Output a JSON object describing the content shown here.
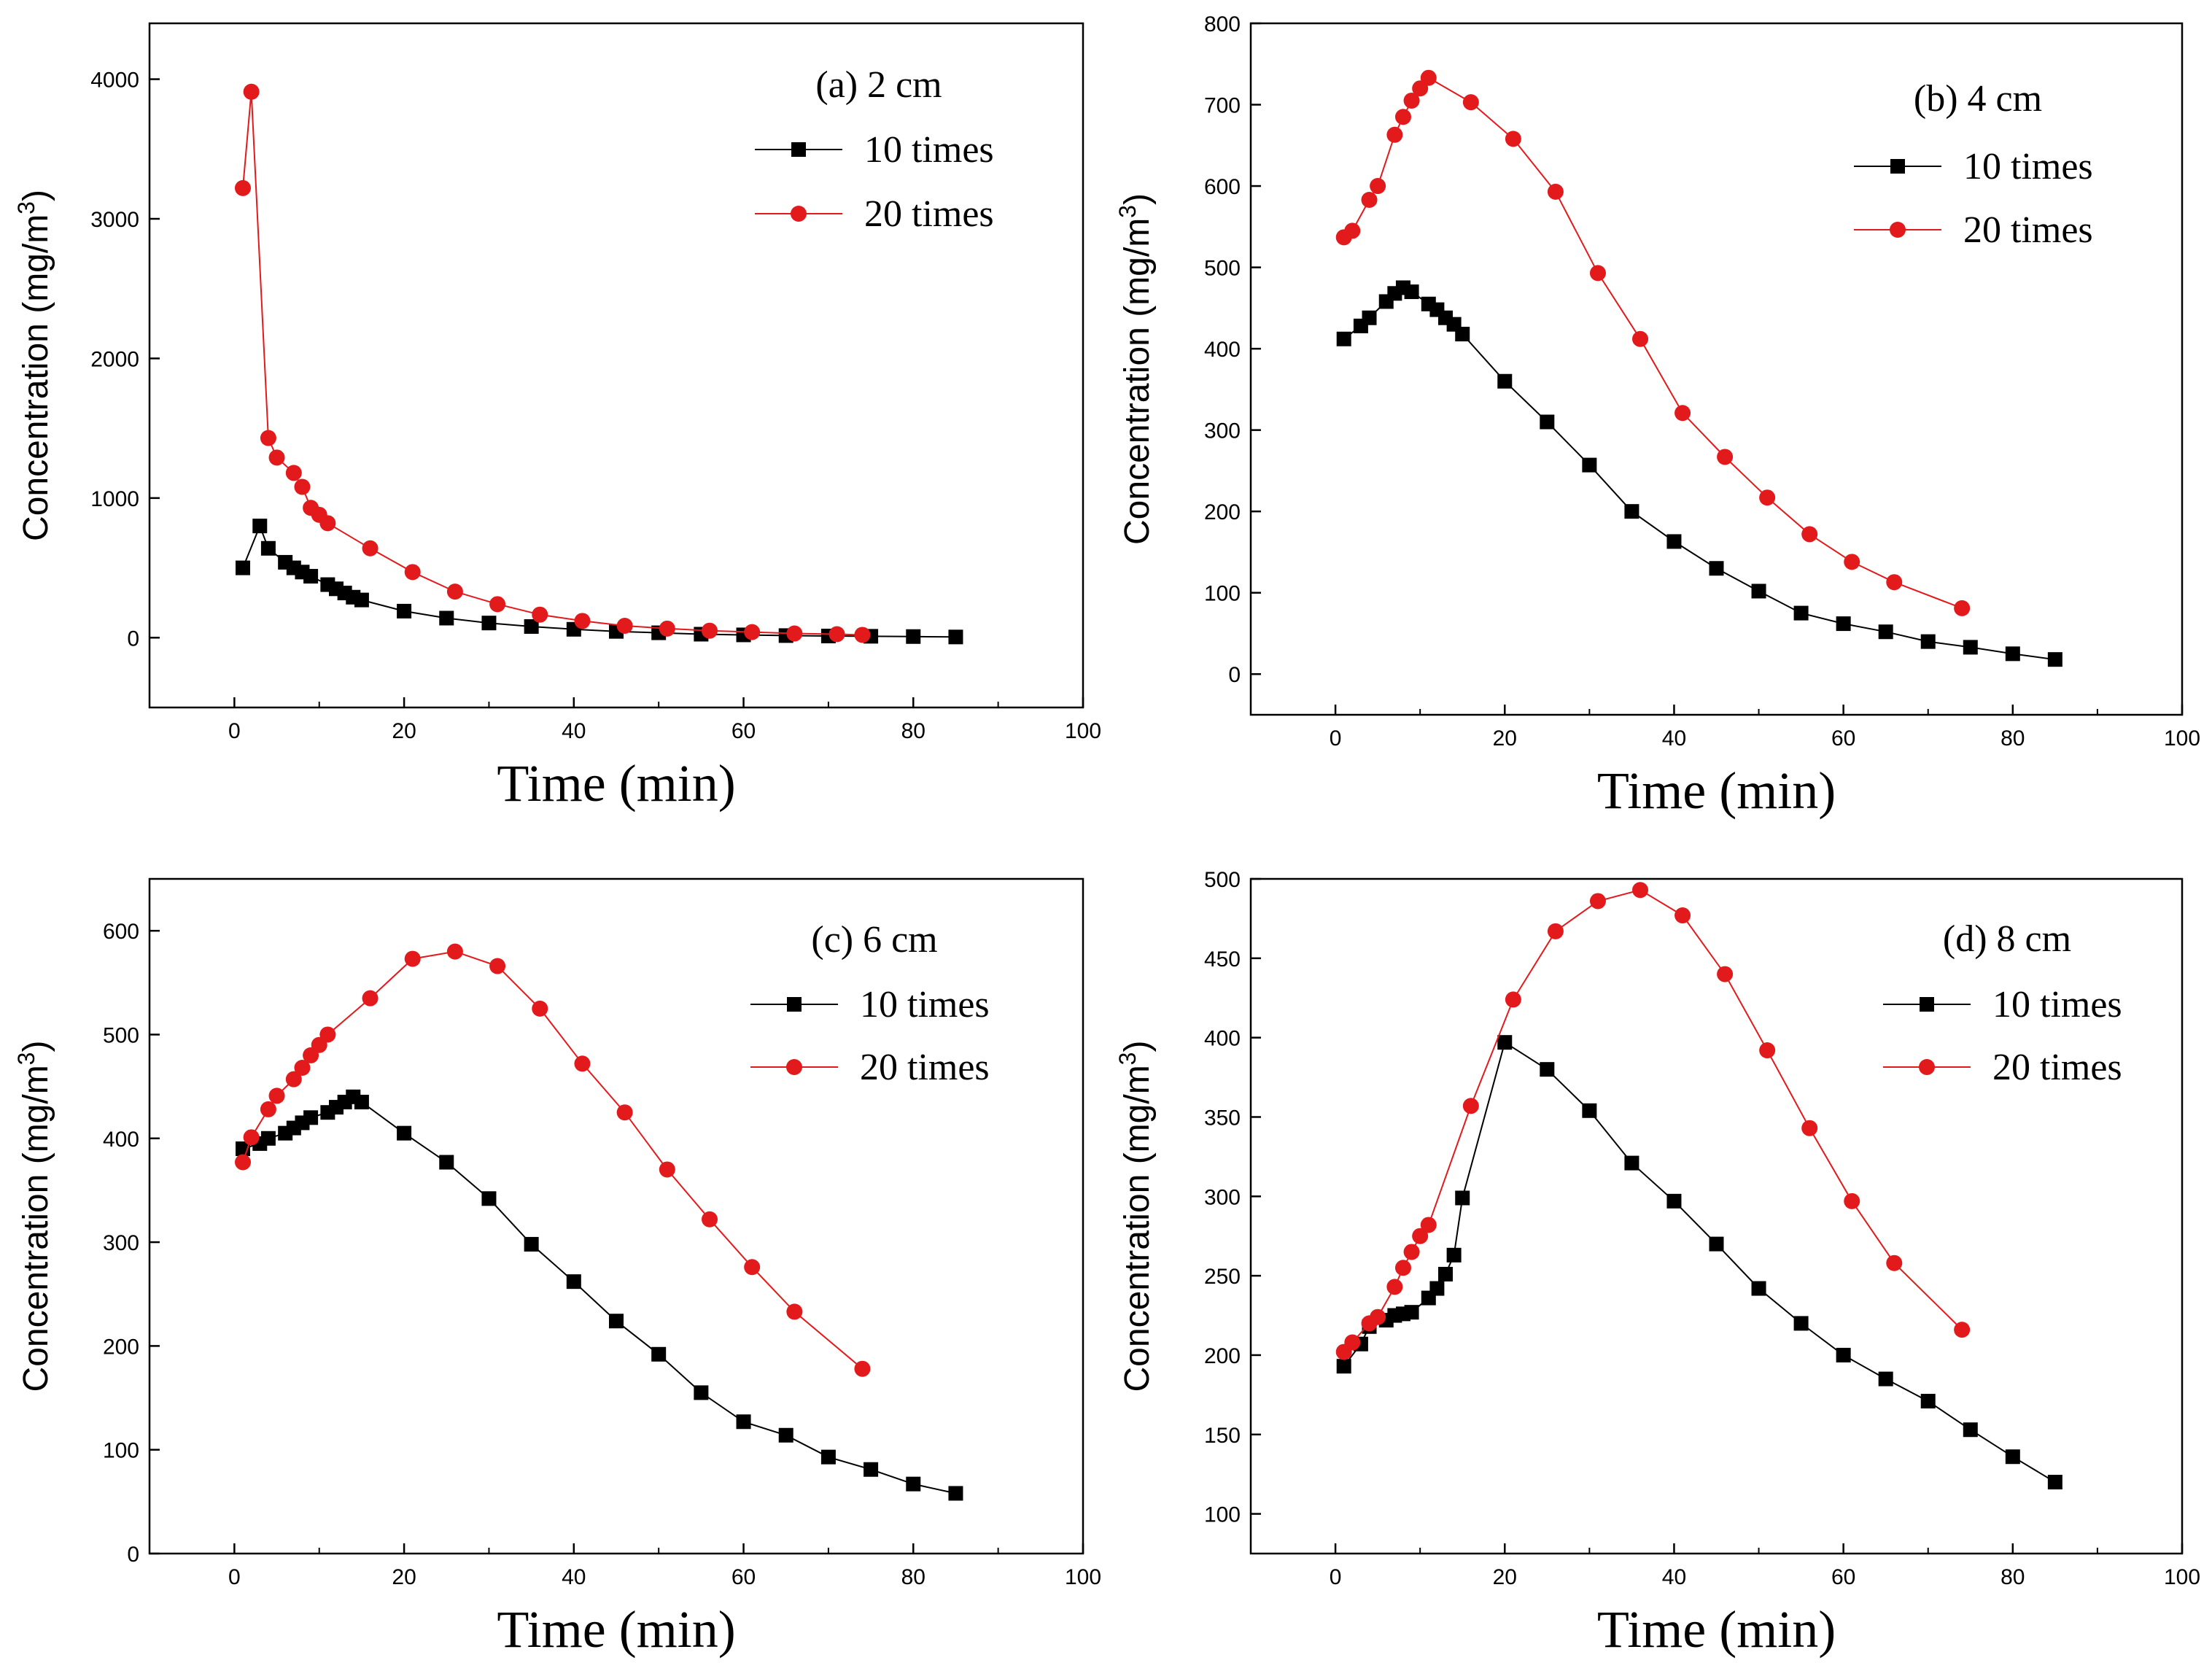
{
  "colors": {
    "series_10": "#000000",
    "series_20": "#e31a1c",
    "axis": "#000000"
  },
  "chart_data": [
    {
      "type": "line",
      "title": "(a) 2 cm",
      "xlabel": "Time (min)",
      "ylabel": "Concentration (mg/m3)",
      "ylabel_main": "Concentration (mg/m",
      "ylabel_sup": "3",
      "ylabel_tail": ")",
      "xlim": [
        -10,
        100
      ],
      "ylim": [
        -500,
        4400
      ],
      "xticks": [
        0,
        20,
        40,
        60,
        80,
        100
      ],
      "yticks": [
        0,
        1000,
        2000,
        3000,
        4000
      ],
      "legend_position": "top-right",
      "series": [
        {
          "name": "10 times",
          "marker": "square",
          "x": [
            1,
            3,
            4,
            6,
            7,
            8,
            9,
            11,
            12,
            13,
            14,
            15,
            20,
            25,
            30,
            35,
            40,
            45,
            50,
            55,
            60,
            65,
            70,
            75,
            80,
            85
          ],
          "y": [
            500,
            800,
            640,
            540,
            500,
            470,
            440,
            380,
            350,
            320,
            290,
            270,
            190,
            140,
            105,
            80,
            60,
            45,
            35,
            25,
            20,
            15,
            12,
            10,
            8,
            5
          ]
        },
        {
          "name": "20 times",
          "marker": "circle",
          "x": [
            1,
            2,
            4,
            5,
            7,
            8,
            9,
            10,
            11,
            16,
            21,
            26,
            31,
            36,
            41,
            46,
            51,
            56,
            61,
            66,
            71,
            74
          ],
          "y": [
            3220,
            3910,
            1430,
            1290,
            1180,
            1080,
            930,
            880,
            820,
            640,
            470,
            330,
            240,
            165,
            120,
            85,
            65,
            50,
            40,
            30,
            25,
            20
          ]
        }
      ]
    },
    {
      "type": "line",
      "title": "(b) 4 cm",
      "xlabel": "Time (min)",
      "ylabel": "Concentration (mg/m3)",
      "ylabel_main": "Concentration (mg/m",
      "ylabel_sup": "3",
      "ylabel_tail": ")",
      "xlim": [
        -10,
        100
      ],
      "ylim": [
        -50,
        800
      ],
      "xticks": [
        0,
        20,
        40,
        60,
        80,
        100
      ],
      "yticks": [
        0,
        100,
        200,
        300,
        400,
        500,
        600,
        700,
        800
      ],
      "legend_position": "top-right",
      "series": [
        {
          "name": "10 times",
          "marker": "square",
          "x": [
            1,
            3,
            4,
            6,
            7,
            8,
            9,
            11,
            12,
            13,
            14,
            15,
            20,
            25,
            30,
            35,
            40,
            45,
            50,
            55,
            60,
            65,
            70,
            75,
            80,
            85
          ],
          "y": [
            412,
            428,
            438,
            458,
            468,
            475,
            470,
            455,
            448,
            438,
            430,
            418,
            360,
            310,
            257,
            200,
            163,
            130,
            102,
            75,
            62,
            52,
            40,
            33,
            25,
            18
          ]
        },
        {
          "name": "20 times",
          "marker": "circle",
          "x": [
            1,
            2,
            4,
            5,
            7,
            8,
            9,
            10,
            11,
            16,
            21,
            26,
            31,
            36,
            41,
            46,
            51,
            56,
            61,
            66,
            74
          ],
          "y": [
            537,
            545,
            583,
            600,
            663,
            685,
            705,
            720,
            733,
            703,
            658,
            593,
            493,
            412,
            321,
            267,
            217,
            172,
            138,
            113,
            81
          ]
        }
      ]
    },
    {
      "type": "line",
      "title": "(c) 6 cm",
      "xlabel": "Time (min)",
      "ylabel": "Concentration (mg/m3)",
      "ylabel_main": "Concentration (mg/m",
      "ylabel_sup": "3",
      "ylabel_tail": ")",
      "xlim": [
        -10,
        100
      ],
      "ylim": [
        0,
        650
      ],
      "xticks": [
        0,
        20,
        40,
        60,
        80,
        100
      ],
      "yticks": [
        0,
        100,
        200,
        300,
        400,
        500,
        600
      ],
      "legend_position": "top-right",
      "series": [
        {
          "name": "10 times",
          "marker": "square",
          "x": [
            1,
            3,
            4,
            6,
            7,
            8,
            9,
            11,
            12,
            13,
            14,
            15,
            20,
            25,
            30,
            35,
            40,
            45,
            50,
            55,
            60,
            65,
            70,
            75,
            80,
            85
          ],
          "y": [
            390,
            395,
            400,
            405,
            410,
            415,
            420,
            425,
            430,
            435,
            440,
            435,
            405,
            377,
            342,
            298,
            262,
            224,
            192,
            155,
            127,
            114,
            93,
            81,
            67,
            58
          ]
        },
        {
          "name": "20 times",
          "marker": "circle",
          "x": [
            1,
            2,
            4,
            5,
            7,
            8,
            9,
            10,
            11,
            16,
            21,
            26,
            31,
            36,
            41,
            46,
            51,
            56,
            61,
            66,
            74
          ],
          "y": [
            377,
            401,
            428,
            441,
            457,
            468,
            480,
            490,
            500,
            535,
            573,
            580,
            566,
            525,
            472,
            425,
            370,
            322,
            276,
            233,
            178
          ]
        }
      ]
    },
    {
      "type": "line",
      "title": "(d) 8 cm",
      "xlabel": "Time (min)",
      "ylabel": "Concentration (mg/m3)",
      "ylabel_main": "Concentration (mg/m",
      "ylabel_sup": "3",
      "ylabel_tail": ")",
      "xlim": [
        -10,
        100
      ],
      "ylim": [
        75,
        500
      ],
      "xticks": [
        0,
        20,
        40,
        60,
        80,
        100
      ],
      "yticks": [
        100,
        150,
        200,
        250,
        300,
        350,
        400,
        450,
        500
      ],
      "legend_position": "top-right",
      "series": [
        {
          "name": "10 times",
          "marker": "square",
          "x": [
            1,
            3,
            4,
            6,
            7,
            8,
            9,
            11,
            12,
            13,
            14,
            15,
            20,
            25,
            30,
            35,
            40,
            45,
            50,
            55,
            60,
            65,
            70,
            75,
            80,
            85
          ],
          "y": [
            193,
            207,
            218,
            222,
            225,
            226,
            227,
            236,
            242,
            251,
            263,
            299,
            397,
            380,
            354,
            321,
            297,
            270,
            242,
            220,
            200,
            185,
            171,
            153,
            136,
            120
          ]
        },
        {
          "name": "20 times",
          "marker": "circle",
          "x": [
            1,
            2,
            4,
            5,
            7,
            8,
            9,
            10,
            11,
            16,
            21,
            26,
            31,
            36,
            41,
            46,
            51,
            56,
            61,
            66,
            74
          ],
          "y": [
            202,
            208,
            220,
            224,
            243,
            255,
            265,
            275,
            282,
            357,
            424,
            467,
            486,
            493,
            477,
            440,
            392,
            343,
            297,
            258,
            216
          ]
        }
      ]
    }
  ]
}
